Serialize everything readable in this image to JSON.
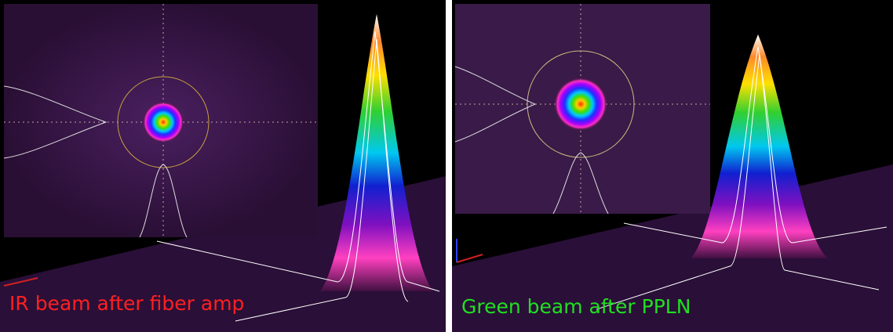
{
  "panels": [
    {
      "caption": "IR beam after fiber amp"
    },
    {
      "caption": "Green beam after PPLN"
    }
  ]
}
